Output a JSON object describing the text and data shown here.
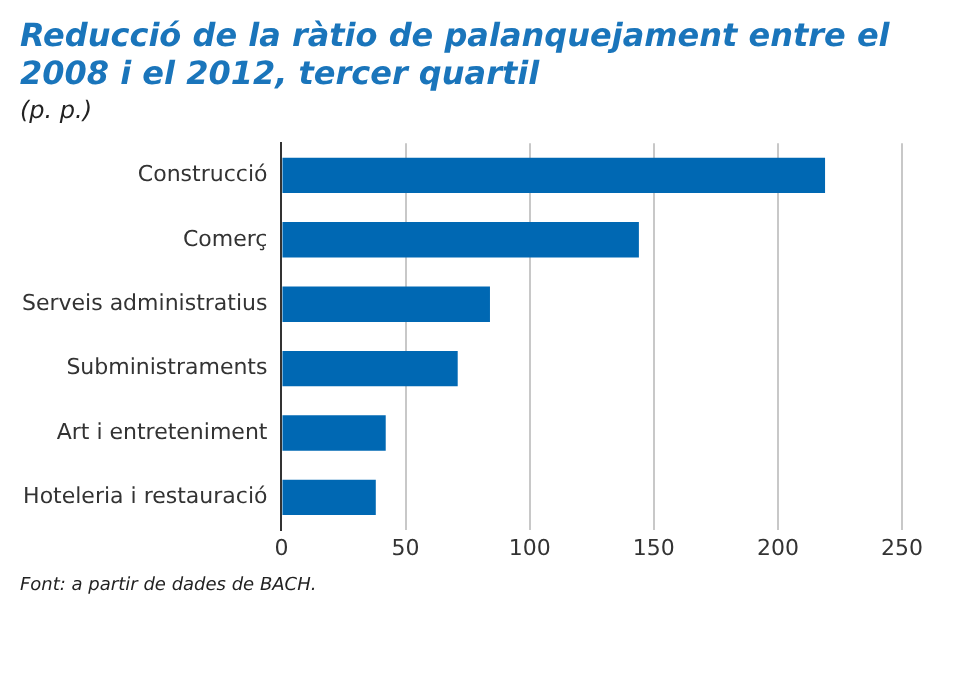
{
  "chart_data": {
    "type": "bar",
    "orientation": "horizontal",
    "title": "Reducció de la ràtio de palanquejament entre el 2008 i el 2012, tercer quartil",
    "subtitle": "(p. p.)",
    "categories": [
      "Construcció",
      "Comerç",
      "Serveis administratius",
      "Subministraments",
      "Art i entreteniment",
      "Hoteleria i restauració"
    ],
    "values": [
      219,
      144,
      84,
      71,
      42,
      38
    ],
    "color": "#0068b3",
    "xlim": [
      0,
      250
    ],
    "xticks": [
      0,
      50,
      100,
      150,
      200,
      250
    ],
    "grid": "x",
    "annotations": [
      "Font: a partir de dades de BACH."
    ]
  }
}
